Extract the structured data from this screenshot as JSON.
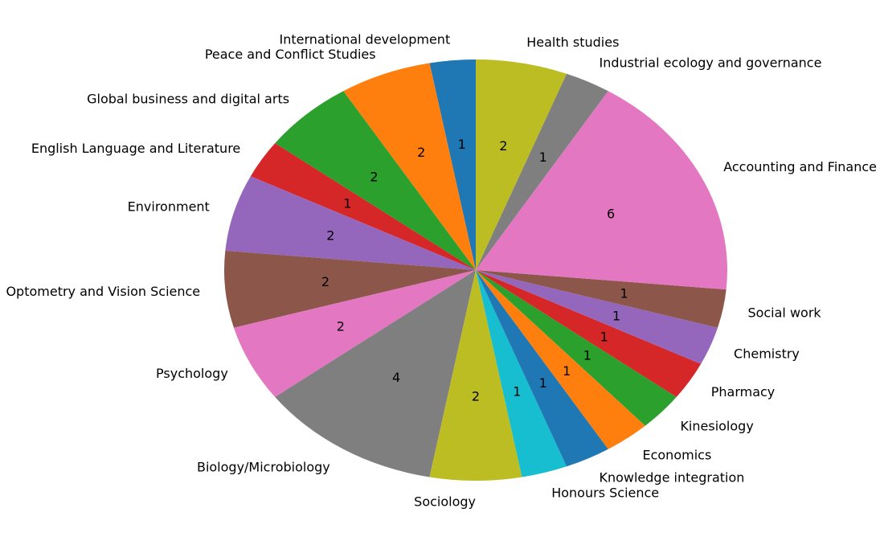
{
  "chart_data": {
    "type": "pie",
    "title": "",
    "start_angle_deg": 90,
    "direction": "counterclockwise",
    "slices": [
      {
        "label": "International development",
        "value": 1,
        "color": "#1f77b4"
      },
      {
        "label": "Peace and Conflict Studies",
        "value": 2,
        "color": "#ff7f0e"
      },
      {
        "label": "Global business and digital arts",
        "value": 2,
        "color": "#2ca02c"
      },
      {
        "label": "English Language and Literature",
        "value": 1,
        "color": "#d62728"
      },
      {
        "label": "Environment",
        "value": 2,
        "color": "#9467bd"
      },
      {
        "label": "Optometry and Vision Science",
        "value": 2,
        "color": "#8c564b"
      },
      {
        "label": "Psychology",
        "value": 2,
        "color": "#e377c2"
      },
      {
        "label": "Biology/Microbiology",
        "value": 4,
        "color": "#7f7f7f"
      },
      {
        "label": "Sociology",
        "value": 2,
        "color": "#bcbd22"
      },
      {
        "label": "Honours Science",
        "value": 1,
        "color": "#17becf"
      },
      {
        "label": "Knowledge integration",
        "value": 1,
        "color": "#1f77b4"
      },
      {
        "label": "Economics",
        "value": 1,
        "color": "#ff7f0e"
      },
      {
        "label": "Kinesiology",
        "value": 1,
        "color": "#2ca02c"
      },
      {
        "label": "Pharmacy",
        "value": 1,
        "color": "#d62728"
      },
      {
        "label": "Chemistry",
        "value": 1,
        "color": "#9467bd"
      },
      {
        "label": "Social work",
        "value": 1,
        "color": "#8c564b"
      },
      {
        "label": "Accounting and Finance",
        "value": 6,
        "color": "#e377c2"
      },
      {
        "label": "Industrial ecology and governance",
        "value": 1,
        "color": "#7f7f7f"
      },
      {
        "label": "Health studies",
        "value": 2,
        "color": "#bcbd22"
      }
    ]
  }
}
